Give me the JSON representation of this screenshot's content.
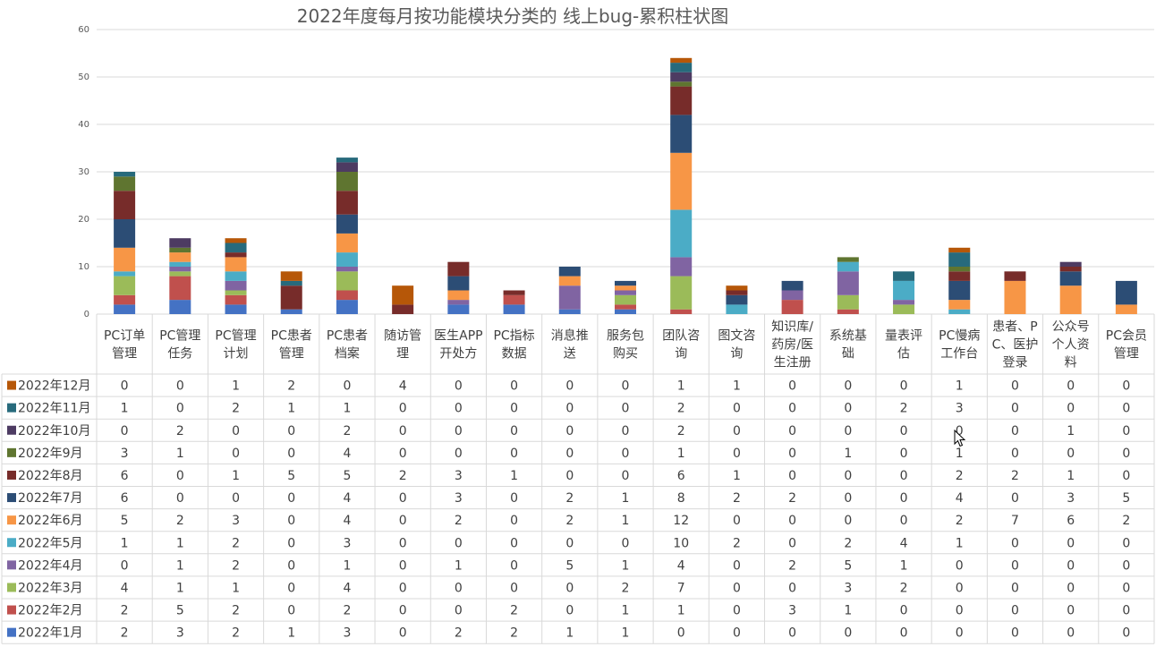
{
  "chart_data": {
    "type": "bar",
    "stacked": true,
    "title": "2022年度每月按功能模块分类的 线上bug-累积柱状图",
    "ylim": [
      0,
      60
    ],
    "yticks": [
      0,
      10,
      20,
      30,
      40,
      50,
      60
    ],
    "grid": true,
    "data_table": true,
    "categories": [
      [
        "PC订单",
        "管理"
      ],
      [
        "PC管理",
        "任务"
      ],
      [
        "PC管理",
        "计划"
      ],
      [
        "PC患者",
        "管理"
      ],
      [
        "PC患者",
        "档案"
      ],
      [
        "随访管",
        "理"
      ],
      [
        "医生APP",
        "开处方"
      ],
      [
        "PC指标",
        "数据"
      ],
      [
        "消息推",
        "送"
      ],
      [
        "服务包",
        "购买"
      ],
      [
        "团队咨",
        "询"
      ],
      [
        "图文咨",
        "询"
      ],
      [
        "知识库/",
        "药房/医",
        "生注册"
      ],
      [
        "系统基",
        "础"
      ],
      [
        "量表评",
        "估"
      ],
      [
        "PC慢病",
        "工作台"
      ],
      [
        "患者、P",
        "C、医护",
        "登录"
      ],
      [
        "公众号",
        "个人资",
        "料"
      ],
      [
        "PC会员",
        "管理"
      ]
    ],
    "series": [
      {
        "name": "2022年1月",
        "color": "#4472C4",
        "values": [
          2,
          3,
          2,
          1,
          3,
          0,
          2,
          2,
          1,
          1,
          0,
          0,
          0,
          0,
          0,
          0,
          0,
          0,
          0
        ]
      },
      {
        "name": "2022年2月",
        "color": "#C0504D",
        "values": [
          2,
          5,
          2,
          0,
          2,
          0,
          0,
          2,
          0,
          1,
          1,
          0,
          3,
          1,
          0,
          0,
          0,
          0,
          0
        ]
      },
      {
        "name": "2022年3月",
        "color": "#9BBB59",
        "values": [
          4,
          1,
          1,
          0,
          4,
          0,
          0,
          0,
          0,
          2,
          7,
          0,
          0,
          3,
          2,
          0,
          0,
          0,
          0
        ]
      },
      {
        "name": "2022年4月",
        "color": "#8064A2",
        "values": [
          0,
          1,
          2,
          0,
          1,
          0,
          1,
          0,
          5,
          1,
          4,
          0,
          2,
          5,
          1,
          0,
          0,
          0,
          0
        ]
      },
      {
        "name": "2022年5月",
        "color": "#4BACC6",
        "values": [
          1,
          1,
          2,
          0,
          3,
          0,
          0,
          0,
          0,
          0,
          10,
          2,
          0,
          2,
          4,
          1,
          0,
          0,
          0
        ]
      },
      {
        "name": "2022年6月",
        "color": "#F79646",
        "values": [
          5,
          2,
          3,
          0,
          4,
          0,
          2,
          0,
          2,
          1,
          12,
          0,
          0,
          0,
          0,
          2,
          7,
          6,
          2
        ]
      },
      {
        "name": "2022年7月",
        "color": "#2C4D75",
        "values": [
          6,
          0,
          0,
          0,
          4,
          0,
          3,
          0,
          2,
          1,
          8,
          2,
          2,
          0,
          0,
          4,
          0,
          3,
          5
        ]
      },
      {
        "name": "2022年8月",
        "color": "#772C2A",
        "values": [
          6,
          0,
          1,
          5,
          5,
          2,
          3,
          1,
          0,
          0,
          6,
          1,
          0,
          0,
          0,
          2,
          2,
          1,
          0
        ]
      },
      {
        "name": "2022年9月",
        "color": "#5F7530",
        "values": [
          3,
          1,
          0,
          0,
          4,
          0,
          0,
          0,
          0,
          0,
          1,
          0,
          0,
          1,
          0,
          1,
          0,
          0,
          0
        ]
      },
      {
        "name": "2022年10月",
        "color": "#4D3B62",
        "values": [
          0,
          2,
          0,
          0,
          2,
          0,
          0,
          0,
          0,
          0,
          2,
          0,
          0,
          0,
          0,
          0,
          0,
          1,
          0
        ]
      },
      {
        "name": "2022年11月",
        "color": "#276A7C",
        "values": [
          1,
          0,
          2,
          1,
          1,
          0,
          0,
          0,
          0,
          0,
          2,
          0,
          0,
          0,
          2,
          3,
          0,
          0,
          0
        ]
      },
      {
        "name": "2022年12月",
        "color": "#B65708",
        "values": [
          0,
          0,
          1,
          2,
          0,
          4,
          0,
          0,
          0,
          0,
          1,
          1,
          0,
          0,
          0,
          1,
          0,
          0,
          0
        ]
      }
    ]
  }
}
